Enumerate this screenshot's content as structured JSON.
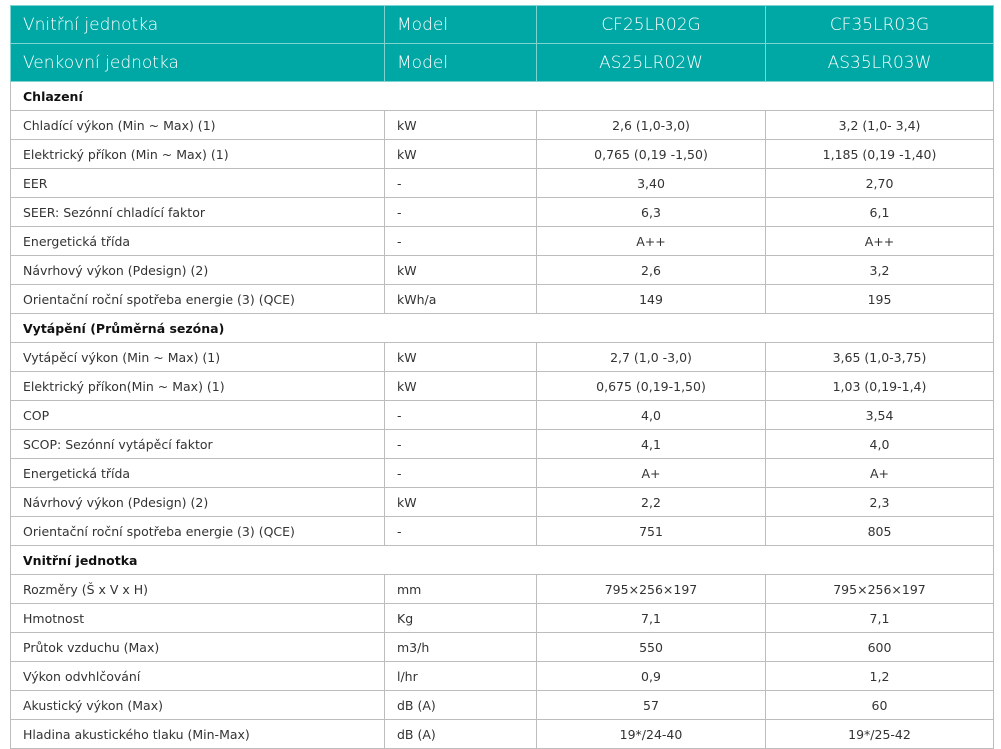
{
  "header": [
    {
      "label": "Vnitřní jednotka",
      "unit": "Model",
      "models": [
        "CF25LR02G",
        "CF35LR03G"
      ]
    },
    {
      "label": "Venkovní jednotka",
      "unit": "Model",
      "models": [
        "AS25LR02W",
        "AS35LR03W"
      ]
    }
  ],
  "sections": [
    {
      "title": "Chlazení",
      "rows": [
        {
          "label": "Chladící výkon (Min ~ Max) (1)",
          "unit": "kW",
          "values": [
            "2,6 (1,0-3,0)",
            "3,2 (1,0- 3,4)"
          ]
        },
        {
          "label": "Elektrický příkon (Min ~ Max) (1)",
          "unit": "kW",
          "values": [
            "0,765 (0,19 -1,50)",
            "1,185 (0,19 -1,40)"
          ]
        },
        {
          "label": "EER",
          "unit": "-",
          "values": [
            "3,40",
            "2,70"
          ]
        },
        {
          "label": "SEER: Sezónní chladící faktor",
          "unit": "-",
          "values": [
            "6,3",
            "6,1"
          ]
        },
        {
          "label": "Energetická třída",
          "unit": "-",
          "values": [
            "A++",
            "A++"
          ]
        },
        {
          "label": "Návrhový výkon (Pdesign) (2)",
          "unit": "kW",
          "values": [
            "2,6",
            "3,2"
          ]
        },
        {
          "label": "Orientační roční spotřeba energie (3) (QCE)",
          "unit": "kWh/a",
          "values": [
            "149",
            "195"
          ]
        }
      ]
    },
    {
      "title": "Vytápění (Průměrná sezóna)",
      "rows": [
        {
          "label": "Vytápěcí výkon (Min ~ Max) (1)",
          "unit": "kW",
          "values": [
            "2,7 (1,0 -3,0)",
            "3,65 (1,0-3,75)"
          ]
        },
        {
          "label": "Elektrický příkon(Min ~ Max) (1)",
          "unit": "kW",
          "values": [
            "0,675 (0,19-1,50)",
            "1,03 (0,19-1,4)"
          ]
        },
        {
          "label": "COP",
          "unit": "-",
          "values": [
            "4,0",
            "3,54"
          ]
        },
        {
          "label": "SCOP: Sezónní vytápěcí faktor",
          "unit": "-",
          "values": [
            "4,1",
            "4,0"
          ]
        },
        {
          "label": "Energetická třída",
          "unit": "-",
          "values": [
            "A+",
            "A+"
          ]
        },
        {
          "label": "Návrhový výkon (Pdesign) (2)",
          "unit": "kW",
          "values": [
            "2,2",
            "2,3"
          ]
        },
        {
          "label": "Orientační roční spotřeba energie (3) (QCE)",
          "unit": "-",
          "values": [
            "751",
            "805"
          ]
        }
      ]
    },
    {
      "title": "Vnitřní jednotka",
      "rows": [
        {
          "label": "Rozměry (Š x V x  H)",
          "unit": "mm",
          "values": [
            "795×256×197",
            "795×256×197"
          ]
        },
        {
          "label": "Hmotnost",
          "unit": "Kg",
          "values": [
            "7,1",
            "7,1"
          ]
        },
        {
          "label": "Průtok vzduchu (Max)",
          "unit": "m3/h",
          "values": [
            "550",
            "600"
          ]
        },
        {
          "label": "Výkon odvhlčování",
          "unit": "l/hr",
          "values": [
            "0,9",
            "1,2"
          ]
        },
        {
          "label": "Akustický výkon (Max)",
          "unit": "dB (A)",
          "values": [
            "57",
            "60"
          ]
        },
        {
          "label": "Hladina akustického tlaku (Min-Max)",
          "unit": "dB (A)",
          "values": [
            "19*/24-40",
            "19*/25-42"
          ]
        }
      ]
    }
  ],
  "colors": {
    "header_bg": "#00a8a5",
    "border": "#bdbdbd"
  }
}
